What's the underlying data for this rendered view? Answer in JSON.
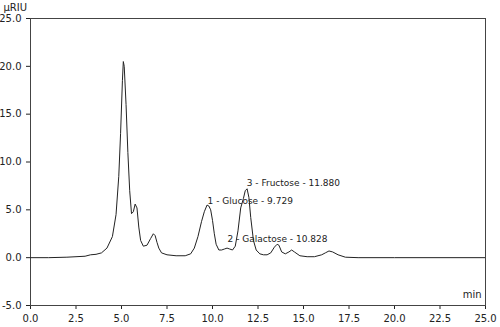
{
  "chart_data": {
    "type": "line",
    "x_label": "min",
    "y_label": "µRIU",
    "color": "#222222",
    "x": [
      0,
      1,
      2,
      3,
      3.3,
      3.6,
      3.9,
      4.2,
      4.5,
      4.7,
      4.85,
      4.95,
      5.05,
      5.1,
      5.15,
      5.25,
      5.35,
      5.45,
      5.55,
      5.65,
      5.75,
      5.85,
      5.95,
      6.05,
      6.2,
      6.4,
      6.6,
      6.75,
      6.85,
      6.95,
      7.05,
      7.2,
      7.5,
      8.0,
      8.5,
      8.8,
      9.0,
      9.2,
      9.4,
      9.55,
      9.7,
      9.8,
      9.9,
      10.0,
      10.1,
      10.2,
      10.35,
      10.5,
      10.65,
      10.8,
      10.95,
      11.1,
      11.25,
      11.4,
      11.55,
      11.7,
      11.8,
      11.9,
      12.0,
      12.1,
      12.25,
      12.4,
      12.6,
      12.8,
      13.0,
      13.2,
      13.4,
      13.55,
      13.65,
      13.8,
      14.0,
      14.2,
      14.35,
      14.5,
      14.8,
      15.2,
      15.6,
      16.0,
      16.2,
      16.4,
      16.6,
      16.9,
      17.3,
      18,
      20,
      22.5,
      25
    ],
    "values": [
      0,
      0,
      0.05,
      0.15,
      0.3,
      0.35,
      0.5,
      1.0,
      2.2,
      4.5,
      8.5,
      13,
      18.5,
      20.5,
      20,
      16,
      11,
      7,
      4.6,
      4.8,
      5.6,
      5.2,
      3.2,
      1.8,
      1.2,
      1.3,
      2.0,
      2.5,
      2.3,
      1.6,
      1.0,
      0.5,
      0.3,
      0.2,
      0.2,
      0.4,
      1.0,
      2.2,
      3.8,
      4.8,
      5.5,
      5.4,
      5.0,
      3.9,
      2.5,
      1.4,
      0.8,
      0.8,
      0.9,
      1.0,
      0.9,
      0.8,
      1.2,
      2.8,
      5.2,
      6.2,
      7.0,
      7.2,
      6.3,
      4.2,
      1.8,
      0.8,
      0.4,
      0.3,
      0.3,
      0.5,
      1.1,
      1.4,
      1.3,
      0.6,
      0.4,
      0.6,
      0.8,
      0.6,
      0.2,
      0.1,
      0.1,
      0.3,
      0.5,
      0.7,
      0.6,
      0.3,
      0.05,
      0,
      0,
      0,
      0
    ],
    "annotations": [
      {
        "x": 9.729,
        "y": 5.9,
        "text": "1 - Glucose - 9.729"
      },
      {
        "x": 10.828,
        "y": 1.9,
        "text": "2 - Galactose - 10.828"
      },
      {
        "x": 11.88,
        "y": 7.8,
        "text": "3 - Fructose - 11.880"
      }
    ],
    "xlim": [
      0,
      25
    ],
    "xticks": [
      {
        "value": 0,
        "label": "0.0"
      },
      2.5,
      {
        "value": 5,
        "label": "5.0"
      },
      7.5,
      {
        "value": 10,
        "label": "10.0"
      },
      12.5,
      {
        "value": 15,
        "label": "15.0"
      },
      17.5,
      {
        "value": 20,
        "label": "20.0"
      },
      22.5,
      {
        "value": 25,
        "label": "25.0"
      }
    ],
    "ylim": [
      -5,
      25
    ],
    "yticks": [
      {
        "value": -5,
        "label": "-5.0"
      },
      {
        "value": 0,
        "label": "0.0"
      },
      {
        "value": 5,
        "label": "5.0"
      },
      {
        "value": 10,
        "label": "10.0"
      },
      {
        "value": 15,
        "label": "15.0"
      },
      {
        "value": 20,
        "label": "20.0"
      },
      {
        "value": 25,
        "label": "25.0"
      }
    ],
    "grid": false
  }
}
